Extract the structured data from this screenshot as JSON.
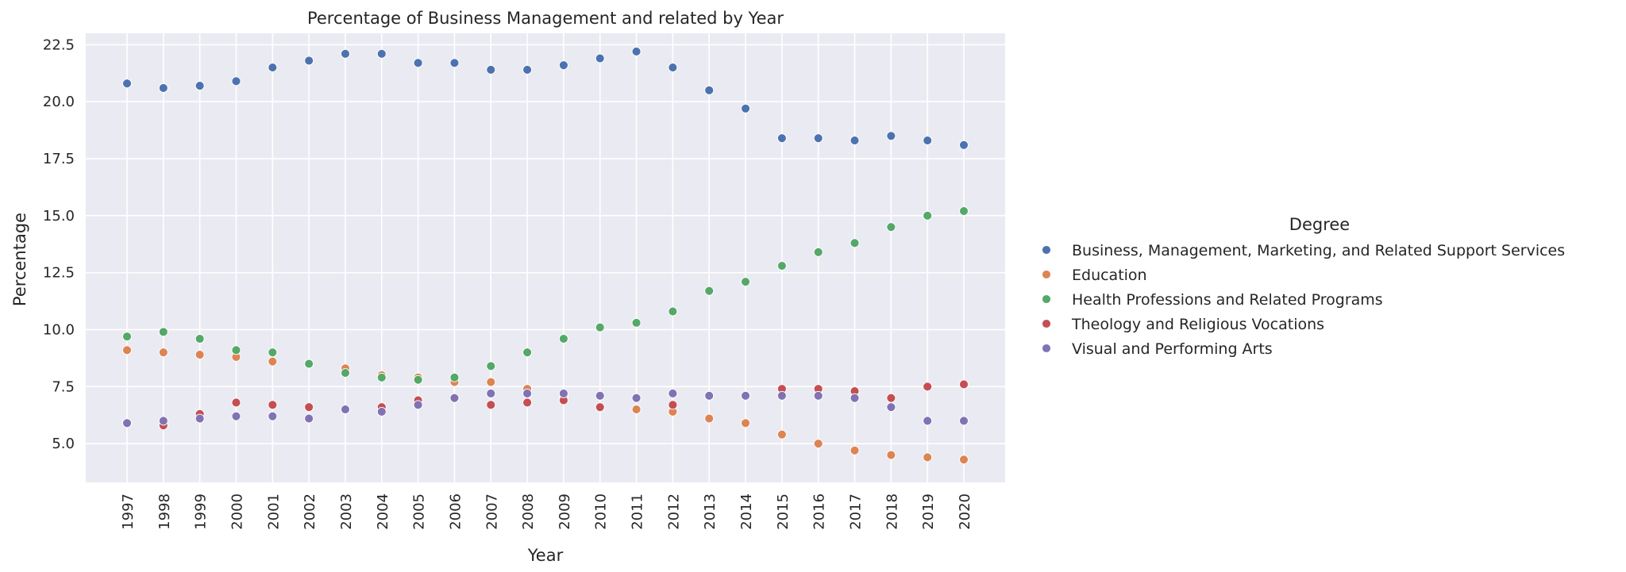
{
  "chart_data": {
    "type": "scatter",
    "title": "Percentage of Business Management and related by Year",
    "xlabel": "Year",
    "ylabel": "Percentage",
    "categories": [
      "1997",
      "1998",
      "1999",
      "2000",
      "2001",
      "2002",
      "2003",
      "2004",
      "2005",
      "2006",
      "2007",
      "2008",
      "2009",
      "2010",
      "2011",
      "2012",
      "2013",
      "2014",
      "2015",
      "2016",
      "2017",
      "2018",
      "2019",
      "2020"
    ],
    "ylim": [
      3.3,
      23.0
    ],
    "yticks": [
      "5.0",
      "7.5",
      "10.0",
      "12.5",
      "15.0",
      "17.5",
      "20.0",
      "22.5"
    ],
    "grid": true,
    "legend_title": "Degree",
    "legend_position": "right",
    "series": [
      {
        "name": "Business, Management, Marketing, and Related Support Services",
        "color": "#4c72b0",
        "values": [
          20.8,
          20.6,
          20.7,
          20.9,
          21.5,
          21.8,
          22.1,
          22.1,
          21.7,
          21.7,
          21.4,
          21.4,
          21.6,
          21.9,
          22.2,
          21.5,
          20.5,
          19.7,
          18.4,
          18.4,
          18.3,
          18.5,
          18.3,
          18.1
        ]
      },
      {
        "name": "Education",
        "color": "#dd8452",
        "values": [
          9.1,
          9.0,
          8.9,
          8.8,
          8.6,
          8.5,
          8.3,
          8.0,
          7.9,
          7.7,
          7.7,
          7.4,
          7.1,
          6.6,
          6.5,
          6.4,
          6.1,
          5.9,
          5.4,
          5.0,
          4.7,
          4.5,
          4.4,
          4.3
        ]
      },
      {
        "name": "Health Professions and Related Programs",
        "color": "#55a868",
        "values": [
          9.7,
          9.9,
          9.6,
          9.1,
          9.0,
          8.5,
          8.1,
          7.9,
          7.8,
          7.9,
          8.4,
          9.0,
          9.6,
          10.1,
          10.3,
          10.8,
          11.7,
          12.1,
          12.8,
          13.4,
          13.8,
          14.5,
          15.0,
          15.2
        ]
      },
      {
        "name": "Theology and Religious Vocations",
        "color": "#c44e52",
        "values": [
          5.9,
          5.8,
          6.3,
          6.8,
          6.7,
          6.6,
          6.5,
          6.6,
          6.9,
          7.0,
          6.7,
          6.8,
          6.9,
          6.6,
          7.0,
          6.7,
          7.1,
          7.1,
          7.4,
          7.4,
          7.3,
          7.0,
          7.5,
          7.6
        ]
      },
      {
        "name": "Visual and Performing Arts",
        "color": "#8172b3",
        "values": [
          5.9,
          6.0,
          6.1,
          6.2,
          6.2,
          6.1,
          6.5,
          6.4,
          6.7,
          7.0,
          7.2,
          7.2,
          7.2,
          7.1,
          7.0,
          7.2,
          7.1,
          7.1,
          7.1,
          7.1,
          7.0,
          6.6,
          6.0,
          6.0
        ]
      }
    ]
  }
}
